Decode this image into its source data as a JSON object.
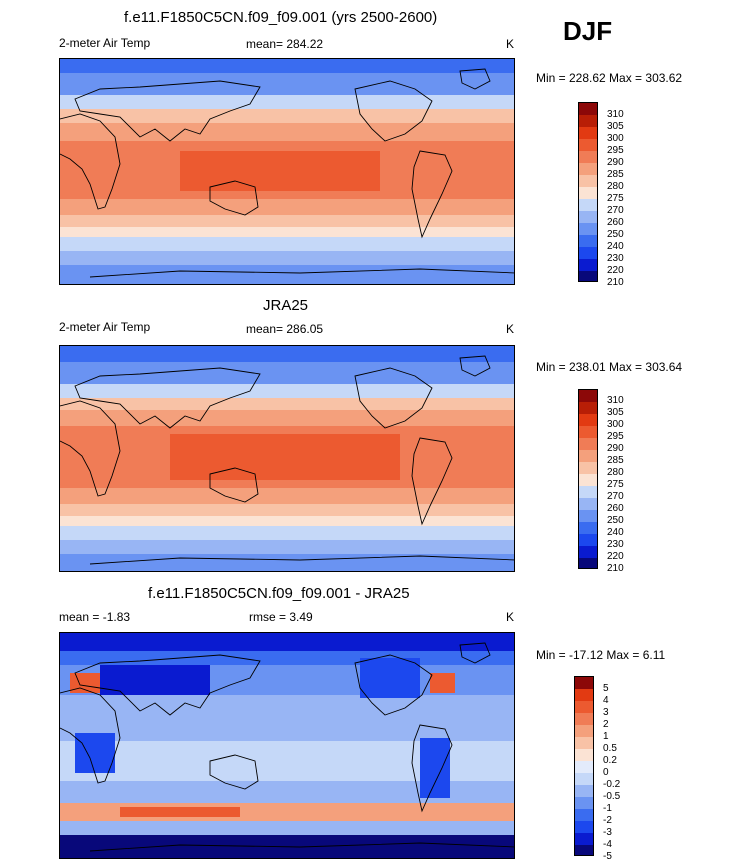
{
  "season": "DJF",
  "colors": {
    "abs_scale": [
      "#08087a",
      "#0a1bd0",
      "#1c48ee",
      "#3a6cf0",
      "#6a93f2",
      "#98b5f4",
      "#c5d8f8",
      "#fbe3d4",
      "#f8c2a6",
      "#f4a07c",
      "#f07c56",
      "#ec5a30",
      "#e23a12",
      "#b81e06",
      "#8c0808"
    ],
    "diff_scale": [
      "#08087a",
      "#0a1bd0",
      "#1c48ee",
      "#3a6cf0",
      "#6a93f2",
      "#98b5f4",
      "#c5d8f8",
      "#e3ebfb",
      "#fbe3d4",
      "#f8c2a6",
      "#f4a07c",
      "#f07c56",
      "#ec5a30",
      "#e23a12",
      "#8c0808"
    ]
  },
  "panels": [
    {
      "title": "f.e11.F1850C5CN.f09_f09.001 (yrs 2500-2600)",
      "left_label": "2-meter Air Temp",
      "center_label": "mean= 284.22",
      "units": "K",
      "minmax": "Min = 228.62 Max = 303.62",
      "colorbar_ticks": [
        "310",
        "305",
        "300",
        "295",
        "290",
        "285",
        "280",
        "275",
        "270",
        "260",
        "250",
        "240",
        "230",
        "220",
        "210"
      ],
      "map_name": "model-temperature-map"
    },
    {
      "title": "JRA25",
      "left_label": "2-meter Air Temp",
      "center_label": "mean= 286.05",
      "units": "K",
      "minmax": "Min = 238.01 Max = 303.64",
      "colorbar_ticks": [
        "310",
        "305",
        "300",
        "295",
        "290",
        "285",
        "280",
        "275",
        "270",
        "260",
        "250",
        "240",
        "230",
        "220",
        "210"
      ],
      "map_name": "reanalysis-temperature-map"
    },
    {
      "title": "f.e11.F1850C5CN.f09_f09.001 - JRA25",
      "left_label": "mean =  -1.83",
      "center_label": "rmse =    3.49",
      "units": "K",
      "minmax": "Min = -17.12 Max =   6.11",
      "colorbar_ticks": [
        "5",
        "4",
        "3",
        "2",
        "1",
        "0.5",
        "0.2",
        "0",
        "-0.2",
        "-0.5",
        "-1",
        "-2",
        "-3",
        "-4",
        "-5"
      ],
      "map_name": "difference-map"
    }
  ]
}
